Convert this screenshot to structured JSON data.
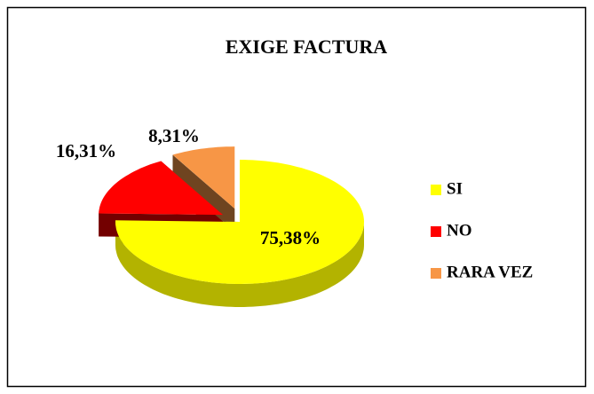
{
  "chart_data": {
    "type": "pie",
    "title": "EXIGE FACTURA",
    "categories": [
      "SI",
      "NO",
      "RARA VEZ"
    ],
    "values": [
      75.38,
      16.31,
      8.31
    ],
    "value_labels": [
      "75,38%",
      "16,31%",
      "8,31%"
    ],
    "colors": [
      "#ffff00",
      "#ff0000",
      "#f79646"
    ],
    "legend": "right"
  }
}
